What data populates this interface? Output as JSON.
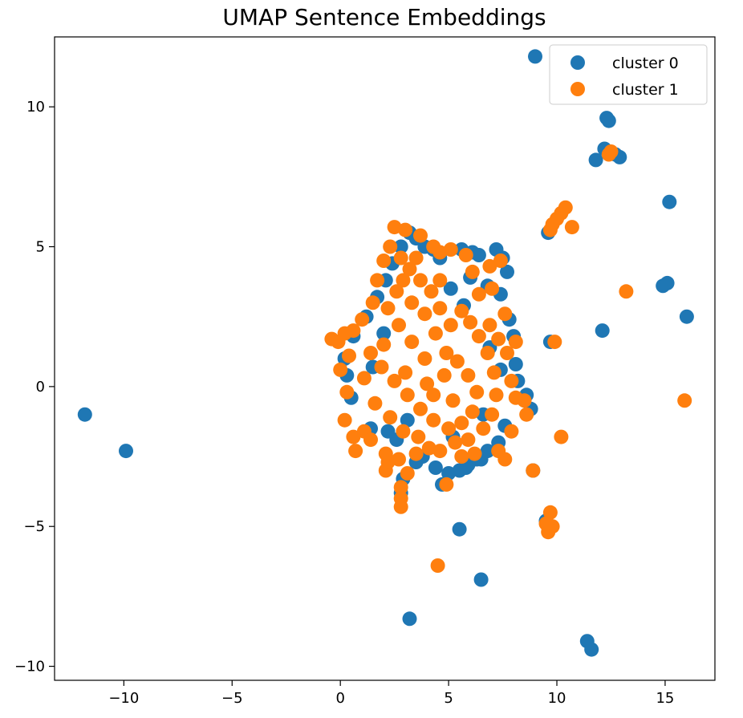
{
  "chart_data": {
    "type": "scatter",
    "title": "UMAP Sentence Embeddings",
    "xlabel": "",
    "ylabel": "",
    "xlim": [
      -13.2,
      17.3
    ],
    "ylim": [
      -10.5,
      12.5
    ],
    "x_ticks": [
      -10,
      -5,
      0,
      5,
      10,
      15
    ],
    "y_ticks": [
      -10,
      -5,
      0,
      5,
      10
    ],
    "x_tick_labels": [
      "−10",
      "−5",
      "0",
      "5",
      "10",
      "15"
    ],
    "y_tick_labels": [
      "−10",
      "−5",
      "0",
      "5",
      "10"
    ],
    "grid": false,
    "legend_position": "top-right",
    "series": [
      {
        "name": "cluster 0",
        "color": "#1f77b4",
        "points": [
          [
            9.0,
            11.8
          ],
          [
            12.3,
            9.6
          ],
          [
            12.4,
            9.5
          ],
          [
            12.2,
            8.5
          ],
          [
            11.8,
            8.1
          ],
          [
            12.9,
            8.2
          ],
          [
            12.7,
            8.3
          ],
          [
            15.2,
            6.6
          ],
          [
            14.9,
            3.6
          ],
          [
            15.1,
            3.7
          ],
          [
            16.0,
            2.5
          ],
          [
            12.1,
            2.0
          ],
          [
            9.6,
            5.5
          ],
          [
            9.7,
            1.6
          ],
          [
            -11.8,
            -1.0
          ],
          [
            -9.9,
            -2.3
          ],
          [
            5.5,
            -5.1
          ],
          [
            6.5,
            -6.9
          ],
          [
            3.2,
            -8.3
          ],
          [
            11.4,
            -9.1
          ],
          [
            11.6,
            -9.4
          ],
          [
            9.5,
            -4.8
          ],
          [
            9.6,
            -5.0
          ],
          [
            8.9,
            -3.0
          ],
          [
            2.8,
            -3.8
          ],
          [
            2.9,
            -3.3
          ],
          [
            4.7,
            -3.5
          ],
          [
            5.8,
            -2.9
          ],
          [
            6.3,
            -2.6
          ],
          [
            3.2,
            5.5
          ],
          [
            3.5,
            5.3
          ],
          [
            3.9,
            5.0
          ],
          [
            4.3,
            4.9
          ],
          [
            4.6,
            4.6
          ],
          [
            5.6,
            4.9
          ],
          [
            6.1,
            4.8
          ],
          [
            6.4,
            4.7
          ],
          [
            7.2,
            4.9
          ],
          [
            7.5,
            4.6
          ],
          [
            7.7,
            4.1
          ],
          [
            7.4,
            3.3
          ],
          [
            7.8,
            2.4
          ],
          [
            8.0,
            1.8
          ],
          [
            8.1,
            0.8
          ],
          [
            8.2,
            0.2
          ],
          [
            8.6,
            -0.3
          ],
          [
            8.8,
            -0.8
          ],
          [
            7.6,
            -1.4
          ],
          [
            7.3,
            -2.0
          ],
          [
            6.8,
            -2.3
          ],
          [
            6.5,
            -2.6
          ],
          [
            5.9,
            -2.8
          ],
          [
            5.5,
            -3.0
          ],
          [
            5.0,
            -3.1
          ],
          [
            4.4,
            -2.9
          ],
          [
            3.8,
            -2.5
          ],
          [
            3.5,
            -2.7
          ],
          [
            2.6,
            -1.9
          ],
          [
            2.2,
            -1.6
          ],
          [
            1.4,
            -1.5
          ],
          [
            0.5,
            -0.4
          ],
          [
            0.3,
            0.4
          ],
          [
            0.2,
            1.0
          ],
          [
            0.6,
            1.8
          ],
          [
            1.2,
            2.5
          ],
          [
            1.7,
            3.2
          ],
          [
            2.1,
            3.8
          ],
          [
            2.4,
            4.4
          ],
          [
            2.8,
            5.0
          ],
          [
            5.1,
            3.5
          ],
          [
            6.0,
            3.9
          ],
          [
            6.8,
            3.6
          ],
          [
            5.7,
            2.9
          ],
          [
            6.9,
            1.4
          ],
          [
            7.4,
            0.6
          ],
          [
            6.6,
            -1.0
          ],
          [
            5.2,
            -1.8
          ],
          [
            3.1,
            -1.2
          ],
          [
            1.5,
            0.7
          ],
          [
            2.0,
            1.9
          ]
        ]
      },
      {
        "name": "cluster 1",
        "color": "#ff7f0e",
        "points": [
          [
            12.5,
            8.4
          ],
          [
            12.4,
            8.3
          ],
          [
            10.4,
            6.4
          ],
          [
            10.2,
            6.2
          ],
          [
            10.0,
            6.0
          ],
          [
            9.8,
            5.8
          ],
          [
            10.7,
            5.7
          ],
          [
            9.7,
            5.6
          ],
          [
            13.2,
            3.4
          ],
          [
            9.9,
            1.6
          ],
          [
            15.9,
            -0.5
          ],
          [
            10.2,
            -1.8
          ],
          [
            8.9,
            -3.0
          ],
          [
            9.7,
            -4.5
          ],
          [
            9.8,
            -5.0
          ],
          [
            9.6,
            -5.2
          ],
          [
            9.5,
            -4.9
          ],
          [
            4.5,
            -6.4
          ],
          [
            2.8,
            -4.3
          ],
          [
            2.8,
            -4.0
          ],
          [
            2.8,
            -3.6
          ],
          [
            3.1,
            -3.1
          ],
          [
            2.1,
            -3.0
          ],
          [
            2.2,
            -2.7
          ],
          [
            4.9,
            -3.5
          ],
          [
            5.6,
            -2.5
          ],
          [
            6.2,
            -2.4
          ],
          [
            7.6,
            -2.6
          ],
          [
            7.3,
            -2.3
          ],
          [
            8.5,
            -0.5
          ],
          [
            8.6,
            -1.0
          ],
          [
            8.1,
            -0.4
          ],
          [
            7.9,
            -1.6
          ],
          [
            8.1,
            1.6
          ],
          [
            7.7,
            1.2
          ],
          [
            7.9,
            0.2
          ],
          [
            7.6,
            2.6
          ],
          [
            7.0,
            3.5
          ],
          [
            6.9,
            4.3
          ],
          [
            7.4,
            4.5
          ],
          [
            6.1,
            4.1
          ],
          [
            5.8,
            4.7
          ],
          [
            5.1,
            4.9
          ],
          [
            4.6,
            4.8
          ],
          [
            4.3,
            5.0
          ],
          [
            3.7,
            5.4
          ],
          [
            3.0,
            5.6
          ],
          [
            2.5,
            5.7
          ],
          [
            2.3,
            5.0
          ],
          [
            2.0,
            4.5
          ],
          [
            1.7,
            3.8
          ],
          [
            1.5,
            3.0
          ],
          [
            1.0,
            2.4
          ],
          [
            0.6,
            2.0
          ],
          [
            0.2,
            1.9
          ],
          [
            -0.4,
            1.7
          ],
          [
            -0.1,
            1.6
          ],
          [
            0.4,
            1.1
          ],
          [
            0.0,
            0.6
          ],
          [
            0.3,
            -0.2
          ],
          [
            0.2,
            -1.2
          ],
          [
            0.6,
            -1.8
          ],
          [
            1.1,
            -1.6
          ],
          [
            0.7,
            -2.3
          ],
          [
            1.4,
            -1.9
          ],
          [
            2.1,
            -2.4
          ],
          [
            2.7,
            -2.6
          ],
          [
            3.5,
            -2.4
          ],
          [
            4.1,
            -2.2
          ],
          [
            4.6,
            -2.3
          ],
          [
            5.3,
            -2.0
          ],
          [
            5.9,
            -1.9
          ],
          [
            6.6,
            -1.5
          ],
          [
            7.0,
            -1.0
          ],
          [
            7.2,
            -0.3
          ],
          [
            7.1,
            0.5
          ],
          [
            6.8,
            1.2
          ],
          [
            6.4,
            1.8
          ],
          [
            6.0,
            2.3
          ],
          [
            5.6,
            2.7
          ],
          [
            5.1,
            2.2
          ],
          [
            4.6,
            2.8
          ],
          [
            4.2,
            3.4
          ],
          [
            3.7,
            3.8
          ],
          [
            3.2,
            4.2
          ],
          [
            2.8,
            4.6
          ],
          [
            2.6,
            3.4
          ],
          [
            3.3,
            3.0
          ],
          [
            3.9,
            2.6
          ],
          [
            4.4,
            1.9
          ],
          [
            4.9,
            1.2
          ],
          [
            5.4,
            0.9
          ],
          [
            5.9,
            0.4
          ],
          [
            6.3,
            -0.2
          ],
          [
            6.1,
            -0.9
          ],
          [
            5.6,
            -1.3
          ],
          [
            5.0,
            -1.5
          ],
          [
            4.3,
            -1.2
          ],
          [
            3.7,
            -0.8
          ],
          [
            3.1,
            -0.3
          ],
          [
            2.5,
            0.2
          ],
          [
            1.9,
            0.7
          ],
          [
            1.4,
            1.2
          ],
          [
            1.1,
            0.3
          ],
          [
            1.6,
            -0.6
          ],
          [
            2.3,
            -1.1
          ],
          [
            2.9,
            -1.6
          ],
          [
            3.6,
            -1.8
          ],
          [
            4.3,
            -0.3
          ],
          [
            4.8,
            0.4
          ],
          [
            3.9,
            1.0
          ],
          [
            3.3,
            1.6
          ],
          [
            2.7,
            2.2
          ],
          [
            2.2,
            2.8
          ],
          [
            2.0,
            1.5
          ],
          [
            3.0,
            0.5
          ],
          [
            4.0,
            0.1
          ],
          [
            5.2,
            -0.5
          ],
          [
            4.6,
            3.8
          ],
          [
            3.5,
            4.6
          ],
          [
            2.9,
            3.8
          ],
          [
            6.4,
            3.3
          ],
          [
            6.9,
            2.2
          ],
          [
            7.3,
            1.7
          ]
        ]
      }
    ]
  }
}
